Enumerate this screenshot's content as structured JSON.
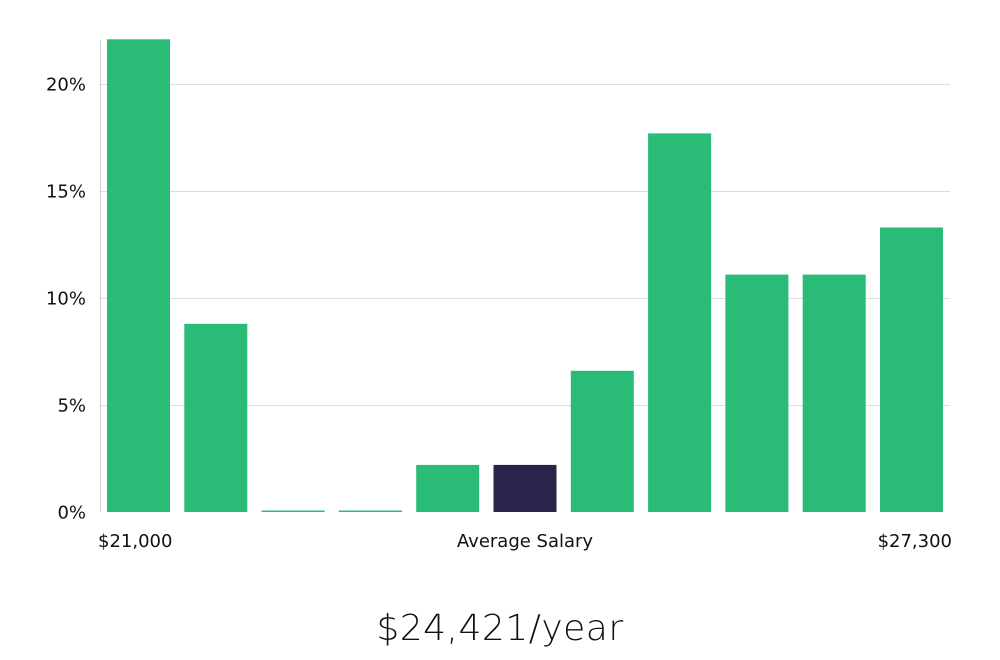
{
  "chart_data": {
    "type": "bar",
    "title": "",
    "xlabel": "Average Salary",
    "ylabel": "",
    "x_range_labels": {
      "min": "$21,000",
      "max": "$27,300"
    },
    "ylim": [
      0,
      23
    ],
    "yticks": [
      0,
      5,
      10,
      15,
      20
    ],
    "ytick_labels": [
      "0%",
      "5%",
      "10%",
      "15%",
      "20%"
    ],
    "grid": true,
    "values": [
      22.1,
      8.8,
      0.05,
      0.05,
      2.2,
      2.2,
      6.6,
      17.7,
      11.1,
      11.1,
      13.3
    ],
    "highlight_index": 5,
    "colors": {
      "bar": "#2abb76",
      "highlight": "#29244a",
      "grid": "#dddddd",
      "axis": "#cccccc"
    }
  },
  "summary": {
    "salary_text": "$24,421/year"
  }
}
